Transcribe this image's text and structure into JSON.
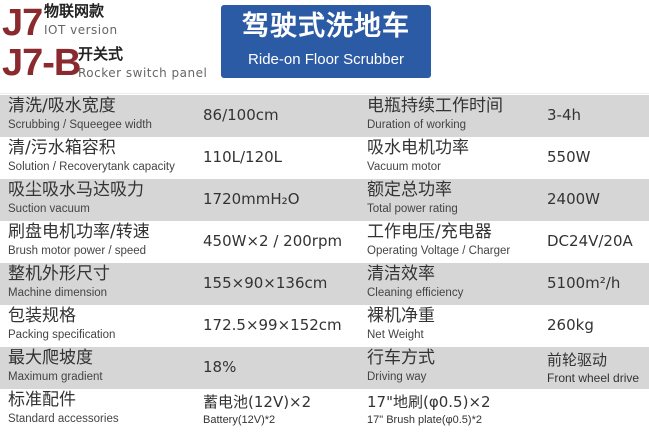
{
  "header": {
    "models": [
      {
        "code": "J7",
        "cn": "物联网款",
        "en": "IOT version"
      },
      {
        "code": "J7-B",
        "cn": "开关式",
        "en": "Rocker switch panel"
      }
    ],
    "title_cn": "驾驶式洗地车",
    "title_en": "Ride-on Floor Scrubber",
    "colors": {
      "model": "#8b2a2e",
      "banner": "#2c5ba5",
      "row_shade": "#d6d6d6"
    }
  },
  "specs": [
    {
      "l_cn": "清洗/吸水宽度",
      "l_en": "Scrubbing / Squeegee width",
      "v": "86/100cm",
      "r_cn": "电瓶持续工作时间",
      "r_en": "Duration of working",
      "rv": "3-4h"
    },
    {
      "l_cn": "清/污水箱容积",
      "l_en": "Solution / Recoverytank capacity",
      "v": "110L/120L",
      "r_cn": "吸水电机功率",
      "r_en": "Vacuum motor",
      "rv": "550W"
    },
    {
      "l_cn": "吸尘吸水马达吸力",
      "l_en": "Suction vacuum",
      "v": "1720mmH₂O",
      "r_cn": "额定总功率",
      "r_en": "Total power rating",
      "rv": "2400W"
    },
    {
      "l_cn": "刷盘电机功率/转速",
      "l_en": "Brush motor power / speed",
      "v": "450W×2 / 200rpm",
      "r_cn": "工作电压/充电器",
      "r_en": "Operating Voltage / Charger",
      "rv": "DC24V/20A"
    },
    {
      "l_cn": "整机外形尺寸",
      "l_en": "Machine dimension",
      "v": "155×90×136cm",
      "r_cn": "清洁效率",
      "r_en": "Cleaning efficiency",
      "rv": "5100m²/h"
    },
    {
      "l_cn": "包装规格",
      "l_en": "Packing specification",
      "v": "172.5×99×152cm",
      "r_cn": "裸机净重",
      "r_en": "Net Weight",
      "rv": "260kg"
    },
    {
      "l_cn": "最大爬坡度",
      "l_en": "Maximum gradient",
      "v": "18%",
      "r_cn": "行车方式",
      "r_en": "Driving way",
      "rv_cn": "前轮驱动",
      "rv_en": "Front wheel drive"
    },
    {
      "l_cn": "标准配件",
      "l_en": "Standard accessories",
      "v_cn": "蓄电池(12V)×2",
      "v_en": "Battery(12V)*2",
      "r2_cn": "17\"地刷(φ0.5)×2",
      "r2_en": "17\" Brush plate(φ0.5)*2"
    }
  ]
}
